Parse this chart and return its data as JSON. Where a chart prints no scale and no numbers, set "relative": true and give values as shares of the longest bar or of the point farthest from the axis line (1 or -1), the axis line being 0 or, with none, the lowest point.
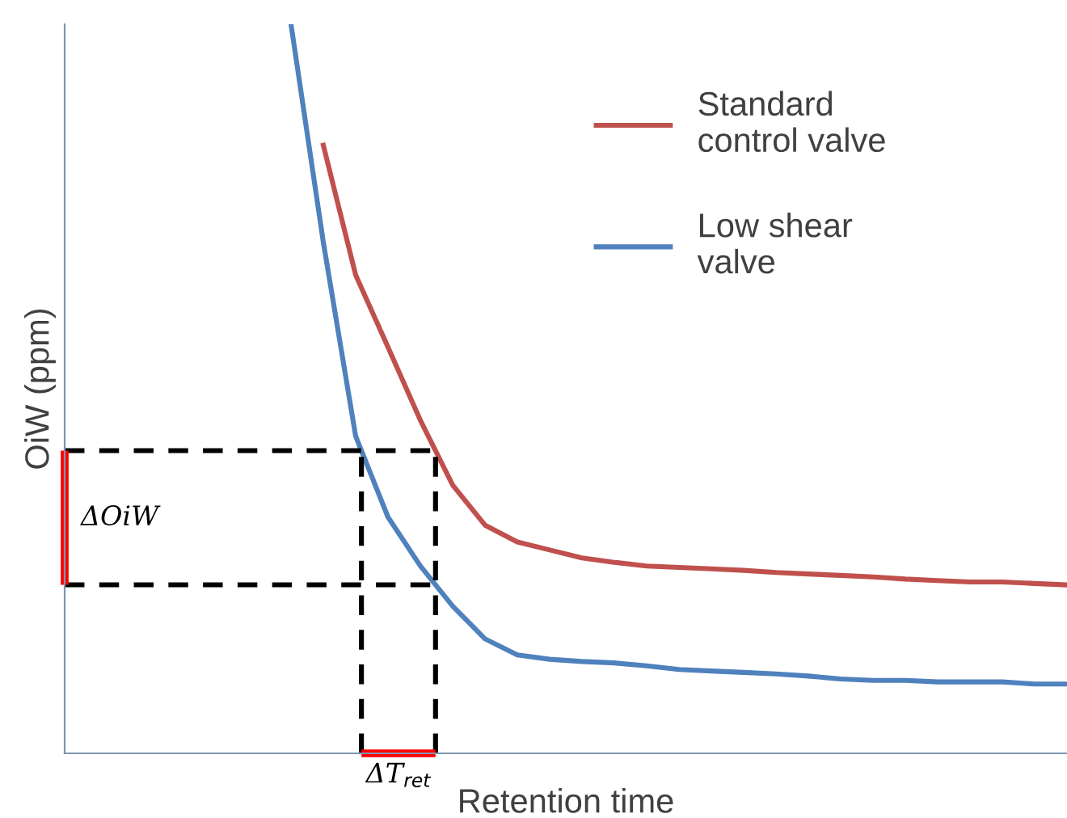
{
  "chart_data": {
    "type": "line",
    "relative": true,
    "xlabel": "Retention time",
    "ylabel": "OiW (ppm)",
    "categories": [
      null,
      null,
      null,
      null,
      null,
      null,
      null,
      null,
      null,
      null,
      null,
      null,
      null,
      null,
      null,
      null,
      null,
      null,
      null,
      null,
      null,
      null,
      null,
      null,
      null,
      null,
      null,
      null,
      null,
      null,
      null,
      null
    ],
    "series": [
      {
        "name": "Standard\ncontrol valve",
        "color": "#c0504d",
        "values": [
          null,
          null,
          null,
          null,
          null,
          null,
          null,
          null,
          0.834,
          0.656,
          0.557,
          0.457,
          0.368,
          0.313,
          0.29,
          0.279,
          0.268,
          0.262,
          0.257,
          0.255,
          0.253,
          0.251,
          0.248,
          0.246,
          0.244,
          0.242,
          0.239,
          0.237,
          0.235,
          0.235,
          0.233,
          0.231
        ]
      },
      {
        "name": "Low shear\nvalve",
        "color": "#4f81bd",
        "values": [
          null,
          null,
          null,
          null,
          null,
          null,
          null,
          1,
          0.701,
          0.435,
          0.324,
          0.257,
          0.202,
          0.157,
          0.135,
          0.129,
          0.126,
          0.124,
          0.12,
          0.115,
          0.113,
          0.111,
          0.109,
          0.106,
          0.102,
          0.1,
          0.1,
          0.098,
          0.098,
          0.098,
          0.095,
          0.095
        ]
      }
    ],
    "annotations": [
      "ΔOiW",
      "ΔT$_{ret}$"
    ],
    "legend": "top right",
    "marker": "none",
    "line_style": "solid"
  }
}
